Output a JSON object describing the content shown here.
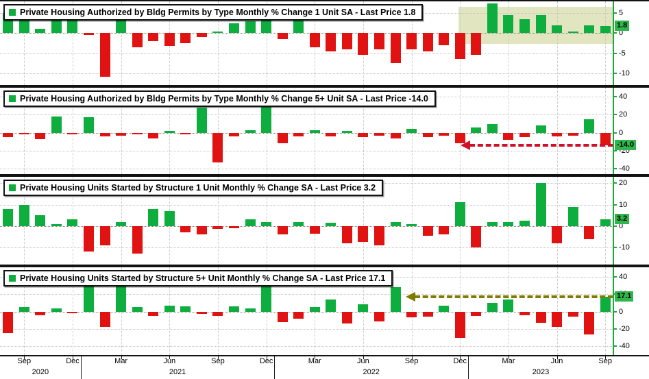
{
  "colors": {
    "up": "#0EAE3E",
    "down": "#E01212",
    "axis_green": "#1EA73C",
    "badge_bg": "#2FB54C",
    "highlight": "rgba(176,188,92,0.38)",
    "arrow_red": "#CF1028",
    "arrow_olive": "#7F7C00",
    "separator": "#121212"
  },
  "x_axis": {
    "n_months": 38,
    "month_ticks": [
      {
        "label": "Sep",
        "index": 1
      },
      {
        "label": "Dec",
        "index": 4
      },
      {
        "label": "Mar",
        "index": 7
      },
      {
        "label": "Jun",
        "index": 10
      },
      {
        "label": "Sep",
        "index": 13
      },
      {
        "label": "Dec",
        "index": 16
      },
      {
        "label": "Mar",
        "index": 19
      },
      {
        "label": "Jun",
        "index": 22
      },
      {
        "label": "Sep",
        "index": 25
      },
      {
        "label": "Dec",
        "index": 28
      },
      {
        "label": "Mar",
        "index": 31
      },
      {
        "label": "Jun",
        "index": 34
      },
      {
        "label": "Sep",
        "index": 37
      }
    ],
    "years": [
      {
        "label": "2020",
        "from": 0,
        "to": 5
      },
      {
        "label": "2021",
        "from": 5,
        "to": 17
      },
      {
        "label": "2022",
        "from": 17,
        "to": 29
      },
      {
        "label": "2023",
        "from": 29,
        "to": 38
      }
    ]
  },
  "chart_data": [
    {
      "type": "bar",
      "title": "Private Housing Authorized by Bldg Permits by Type Monthly % Change 1 Unit SA - Last Price 1.8",
      "last_price": 1.8,
      "last_price_label": "1.8",
      "ylim": [
        -13,
        8
      ],
      "yticks": [
        5,
        0,
        -5,
        -10
      ],
      "values": [
        5.0,
        3.5,
        1.2,
        3.5,
        4.2,
        -0.5,
        -11.0,
        5.0,
        -3.5,
        -2.0,
        -3.2,
        -2.5,
        -1.0,
        0.5,
        2.5,
        3.0,
        4.5,
        -1.5,
        5.5,
        -3.5,
        -4.5,
        -4.0,
        -5.5,
        -4.0,
        -7.5,
        -4.0,
        -4.5,
        -3.0,
        -6.5,
        -5.5,
        7.5,
        4.5,
        3.5,
        4.5,
        2.0,
        0.5,
        2.0,
        1.8
      ],
      "highlight": {
        "from_month": 28.4,
        "to_month": 38,
        "y_top": 6.6,
        "y_bottom": -2.6
      },
      "arrow": null
    },
    {
      "type": "bar",
      "title": "Private Housing Authorized by Bldg Permits by Type Monthly % Change 5+ Unit SA - Last Price -14.0",
      "last_price": -14.0,
      "last_price_label": "-14.0",
      "ylim": [
        -46,
        50
      ],
      "yticks": [
        40,
        20,
        0,
        -20,
        -40
      ],
      "values": [
        -5,
        -2,
        -7,
        18,
        -2,
        17,
        -4,
        -3,
        -2,
        -6,
        2,
        -2,
        28,
        -33,
        -4,
        3,
        30,
        -12,
        -4,
        3,
        -4,
        2,
        -5,
        -3,
        -6,
        4,
        -5,
        -3,
        -12,
        6,
        10,
        -8,
        -5,
        8,
        -4,
        -3,
        15,
        -14
      ],
      "highlight": null,
      "arrow": {
        "y": -14,
        "from_month": 28.6,
        "color_key": "arrow_red"
      }
    },
    {
      "type": "bar",
      "title": "Private Housing Units Started by Structure 1 Unit Monthly % Change SA - Last Price 3.2",
      "last_price": 3.2,
      "last_price_label": "3.2",
      "ylim": [
        -18,
        23
      ],
      "yticks": [
        20,
        10,
        0,
        -10
      ],
      "values": [
        8,
        10,
        5,
        1,
        3,
        -12,
        -9,
        2,
        -13,
        8,
        7,
        -3,
        -4,
        -1.5,
        -1,
        3,
        2,
        -4,
        2,
        -3.5,
        1.5,
        -8,
        -7.5,
        -9,
        2,
        1,
        -4.5,
        -4,
        11,
        -10,
        2,
        2,
        2.5,
        20,
        -8,
        9,
        -6,
        3.2
      ],
      "highlight": null,
      "arrow": null
    },
    {
      "type": "bar",
      "title": "Private Housing Units Started by Structure 5+ Unit Monthly % Change SA - Last Price 17.1",
      "last_price": 17.1,
      "last_price_label": "17.1",
      "ylim": [
        -50,
        51
      ],
      "yticks": [
        40,
        20,
        0,
        -20,
        -40
      ],
      "values": [
        -25,
        5,
        -4,
        4,
        -2,
        33,
        -18,
        35,
        5,
        -5,
        7,
        6,
        -3,
        -5,
        6,
        4,
        29,
        -12,
        -8,
        5,
        14,
        -14,
        8,
        -11,
        28,
        -7,
        -6,
        7,
        -30,
        -5,
        10,
        14,
        -4,
        -13,
        -18,
        -6,
        -26,
        17.1
      ],
      "highlight": null,
      "arrow": {
        "y": 17.1,
        "from_month": 25.2,
        "color_key": "arrow_olive"
      }
    }
  ]
}
